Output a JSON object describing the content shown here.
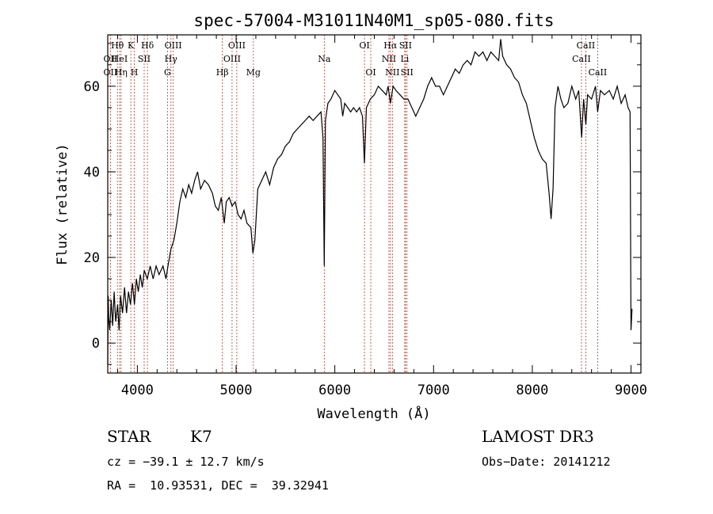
{
  "chart_data": {
    "type": "line",
    "title": "spec-57004-M31011N40M1_sp05-080.fits",
    "xlabel": "Wavelength (Å)",
    "ylabel": "Flux (relative)",
    "xlim": [
      3700,
      9100
    ],
    "ylim": [
      -7,
      72
    ],
    "x_ticks": [
      4000,
      5000,
      6000,
      7000,
      8000,
      9000
    ],
    "y_ticks": [
      0,
      20,
      40,
      60
    ],
    "grid": false,
    "spectrum": [
      [
        3700,
        -5
      ],
      [
        3705,
        11
      ],
      [
        3710,
        6
      ],
      [
        3720,
        3
      ],
      [
        3735,
        10
      ],
      [
        3750,
        4
      ],
      [
        3765,
        12
      ],
      [
        3780,
        5
      ],
      [
        3800,
        9
      ],
      [
        3815,
        3
      ],
      [
        3830,
        11
      ],
      [
        3850,
        7
      ],
      [
        3870,
        13
      ],
      [
        3890,
        7
      ],
      [
        3910,
        12
      ],
      [
        3930,
        9
      ],
      [
        3950,
        14
      ],
      [
        3970,
        9
      ],
      [
        3990,
        15
      ],
      [
        4010,
        12
      ],
      [
        4030,
        16
      ],
      [
        4050,
        13
      ],
      [
        4070,
        17
      ],
      [
        4100,
        15
      ],
      [
        4130,
        18
      ],
      [
        4160,
        15
      ],
      [
        4190,
        18
      ],
      [
        4220,
        16
      ],
      [
        4260,
        18
      ],
      [
        4290,
        15
      ],
      [
        4310,
        18
      ],
      [
        4340,
        22
      ],
      [
        4370,
        24
      ],
      [
        4400,
        28
      ],
      [
        4430,
        33
      ],
      [
        4460,
        36
      ],
      [
        4490,
        34
      ],
      [
        4520,
        37
      ],
      [
        4550,
        35
      ],
      [
        4580,
        38
      ],
      [
        4610,
        40
      ],
      [
        4640,
        36
      ],
      [
        4680,
        38
      ],
      [
        4720,
        37
      ],
      [
        4760,
        35
      ],
      [
        4790,
        32
      ],
      [
        4820,
        31
      ],
      [
        4850,
        34
      ],
      [
        4880,
        28
      ],
      [
        4900,
        33
      ],
      [
        4930,
        34
      ],
      [
        4960,
        32
      ],
      [
        4990,
        33
      ],
      [
        5020,
        30
      ],
      [
        5050,
        29
      ],
      [
        5080,
        31
      ],
      [
        5110,
        28
      ],
      [
        5150,
        27
      ],
      [
        5170,
        21
      ],
      [
        5190,
        24
      ],
      [
        5220,
        36
      ],
      [
        5260,
        38
      ],
      [
        5300,
        40
      ],
      [
        5340,
        37
      ],
      [
        5380,
        41
      ],
      [
        5420,
        43
      ],
      [
        5460,
        44
      ],
      [
        5500,
        46
      ],
      [
        5540,
        47
      ],
      [
        5580,
        49
      ],
      [
        5620,
        50
      ],
      [
        5660,
        51
      ],
      [
        5700,
        52
      ],
      [
        5740,
        53
      ],
      [
        5780,
        52
      ],
      [
        5820,
        53
      ],
      [
        5860,
        54
      ],
      [
        5880,
        48
      ],
      [
        5893,
        18
      ],
      [
        5905,
        52
      ],
      [
        5930,
        56
      ],
      [
        5960,
        57
      ],
      [
        6000,
        59
      ],
      [
        6030,
        58
      ],
      [
        6060,
        57
      ],
      [
        6080,
        53
      ],
      [
        6100,
        56
      ],
      [
        6130,
        55
      ],
      [
        6160,
        54
      ],
      [
        6190,
        55
      ],
      [
        6220,
        54
      ],
      [
        6250,
        55
      ],
      [
        6280,
        53
      ],
      [
        6300,
        42
      ],
      [
        6320,
        55
      ],
      [
        6360,
        57
      ],
      [
        6400,
        58
      ],
      [
        6440,
        60
      ],
      [
        6480,
        59
      ],
      [
        6520,
        58
      ],
      [
        6540,
        60
      ],
      [
        6563,
        56
      ],
      [
        6590,
        60
      ],
      [
        6620,
        59
      ],
      [
        6660,
        58
      ],
      [
        6700,
        57
      ],
      [
        6740,
        57
      ],
      [
        6780,
        55
      ],
      [
        6820,
        53
      ],
      [
        6860,
        55
      ],
      [
        6900,
        57
      ],
      [
        6940,
        60
      ],
      [
        6980,
        62
      ],
      [
        7020,
        60
      ],
      [
        7060,
        60
      ],
      [
        7100,
        58
      ],
      [
        7140,
        60
      ],
      [
        7180,
        62
      ],
      [
        7220,
        64
      ],
      [
        7260,
        63
      ],
      [
        7300,
        65
      ],
      [
        7340,
        66
      ],
      [
        7380,
        65
      ],
      [
        7420,
        68
      ],
      [
        7460,
        67
      ],
      [
        7500,
        68
      ],
      [
        7540,
        66
      ],
      [
        7580,
        68
      ],
      [
        7620,
        67
      ],
      [
        7660,
        66
      ],
      [
        7680,
        71
      ],
      [
        7700,
        67
      ],
      [
        7740,
        65
      ],
      [
        7780,
        64
      ],
      [
        7820,
        62
      ],
      [
        7860,
        61
      ],
      [
        7900,
        58
      ],
      [
        7940,
        56
      ],
      [
        7980,
        52
      ],
      [
        8020,
        48
      ],
      [
        8060,
        45
      ],
      [
        8100,
        43
      ],
      [
        8140,
        42
      ],
      [
        8170,
        35
      ],
      [
        8190,
        29
      ],
      [
        8210,
        36
      ],
      [
        8230,
        55
      ],
      [
        8260,
        60
      ],
      [
        8290,
        57
      ],
      [
        8320,
        55
      ],
      [
        8360,
        56
      ],
      [
        8400,
        60
      ],
      [
        8440,
        57
      ],
      [
        8470,
        59
      ],
      [
        8500,
        48
      ],
      [
        8520,
        57
      ],
      [
        8542,
        51
      ],
      [
        8560,
        58
      ],
      [
        8600,
        57
      ],
      [
        8640,
        60
      ],
      [
        8662,
        54
      ],
      [
        8690,
        59
      ],
      [
        8730,
        58
      ],
      [
        8780,
        59
      ],
      [
        8820,
        57
      ],
      [
        8860,
        60
      ],
      [
        8900,
        56
      ],
      [
        8940,
        58
      ],
      [
        8970,
        55
      ],
      [
        8990,
        54
      ],
      [
        9000,
        3
      ],
      [
        9010,
        8
      ]
    ],
    "line_markers": [
      {
        "label": "Hθ",
        "wavelength": 3798,
        "row": 1
      },
      {
        "label": "OII",
        "wavelength": 3727,
        "row": 2
      },
      {
        "label": "OII",
        "wavelength": 3727,
        "row": 3
      },
      {
        "label": "HeI",
        "wavelength": 3820,
        "row": 2
      },
      {
        "label": "Hη",
        "wavelength": 3835,
        "row": 3
      },
      {
        "label": "K",
        "wavelength": 3934,
        "row": 1
      },
      {
        "label": "SII",
        "wavelength": 4069,
        "row": 2
      },
      {
        "label": "H",
        "wavelength": 3969,
        "row": 3
      },
      {
        "label": "Hδ",
        "wavelength": 4102,
        "row": 1
      },
      {
        "label": "OIII",
        "wavelength": 4363,
        "row": 1
      },
      {
        "label": "Hγ",
        "wavelength": 4340,
        "row": 2
      },
      {
        "label": "G",
        "wavelength": 4305,
        "row": 3
      },
      {
        "label": "OIII",
        "wavelength": 5007,
        "row": 1
      },
      {
        "label": "OIII",
        "wavelength": 4959,
        "row": 2
      },
      {
        "label": "Hβ",
        "wavelength": 4861,
        "row": 3
      },
      {
        "label": "Mg",
        "wavelength": 5175,
        "row": 3
      },
      {
        "label": "Na",
        "wavelength": 5893,
        "row": 2
      },
      {
        "label": "OI",
        "wavelength": 6300,
        "row": 1
      },
      {
        "label": "OI",
        "wavelength": 6364,
        "row": 3
      },
      {
        "label": "Hα",
        "wavelength": 6563,
        "row": 1
      },
      {
        "label": "NII",
        "wavelength": 6548,
        "row": 2
      },
      {
        "label": "NII",
        "wavelength": 6583,
        "row": 3
      },
      {
        "label": "SII",
        "wavelength": 6716,
        "row": 1
      },
      {
        "label": "Li",
        "wavelength": 6708,
        "row": 2
      },
      {
        "label": "SII",
        "wavelength": 6731,
        "row": 3
      },
      {
        "label": "CaII",
        "wavelength": 8542,
        "row": 1
      },
      {
        "label": "CaII",
        "wavelength": 8498,
        "row": 2
      },
      {
        "label": "CaII",
        "wavelength": 8662,
        "row": 3
      }
    ]
  },
  "info": {
    "class_label": "STAR",
    "subclass_label": "K7",
    "survey": "LAMOST DR3",
    "redshift": "cz = −39.1 ± 12.7 km/s",
    "obs_date": "Obs−Date: 20141212",
    "coords": "RA =  10.93531, DEC =  39.32941"
  }
}
